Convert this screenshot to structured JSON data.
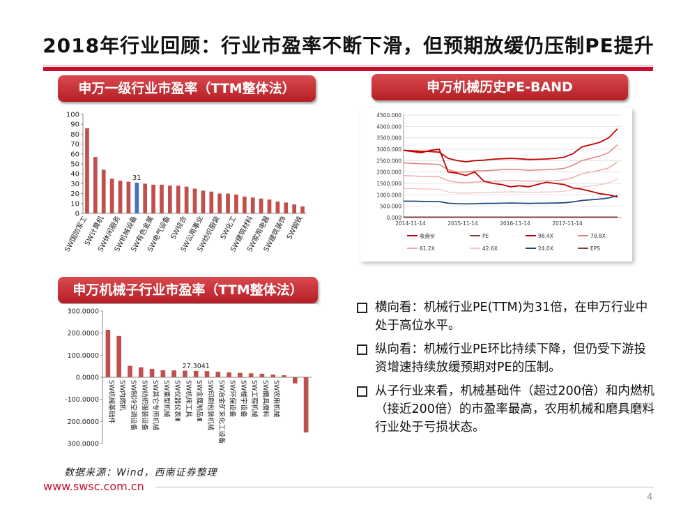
{
  "page": {
    "title": "2018年行业回顾：行业市盈率不断下滑，但预期放缓仍压制PE提升",
    "source": "数据来源：Wind，西南证券整理",
    "url": "www.swsc.com.cn",
    "page_number": "4"
  },
  "headers": {
    "chart1": "申万一级行业市盈率（TTM整体法）",
    "chart2": "申万机械历史PE-BAND",
    "chart3": "申万机械子行业市盈率（TTM整体法）"
  },
  "bullets": [
    "横向看：机械行业PE(TTM)为31倍，在申万行业中处于高位水平。",
    "纵向看：机械行业PE环比持续下降，但仍受下游投资增速持续放缓预期对PE的压制。",
    "从子行业来看，机械基础件（超过200倍）和内燃机（接近200倍）的市盈率最高，农用机械和磨具磨料行业处于亏损状态。"
  ],
  "colors": {
    "red": "#c0504d",
    "blue": "#4472c4",
    "brand": "#c8102e"
  },
  "chart_data": [
    {
      "type": "bar",
      "title": "申万一级行业市盈率（TTM整体法）",
      "ylim": [
        0,
        100
      ],
      "yticks": [
        0,
        10,
        20,
        30,
        40,
        50,
        60,
        70,
        80,
        90,
        100
      ],
      "values": [
        86,
        57,
        44,
        35,
        33,
        32,
        31,
        30,
        29,
        29,
        28,
        28,
        27,
        25,
        23,
        22,
        20,
        20,
        19,
        17,
        16,
        15,
        14,
        12,
        11,
        9,
        7
      ],
      "highlight_index": 6,
      "highlight_label": "31",
      "x_labels": [
        {
          "index": 0,
          "label": "SW国防军工"
        },
        {
          "index": 2,
          "label": "SW计算机"
        },
        {
          "index": 4,
          "label": "SW休闲服务"
        },
        {
          "index": 6,
          "label": "SW机械设备"
        },
        {
          "index": 8,
          "label": "SW有色金属"
        },
        {
          "index": 10,
          "label": "SW电气设备"
        },
        {
          "index": 12,
          "label": "SW综合"
        },
        {
          "index": 14,
          "label": "SW公用事业"
        },
        {
          "index": 16,
          "label": "SW纺织服装"
        },
        {
          "index": 18,
          "label": "SW化工"
        },
        {
          "index": 20,
          "label": "SW建筑材料"
        },
        {
          "index": 22,
          "label": "SW家用电器"
        },
        {
          "index": 24,
          "label": "SW建筑装饰"
        },
        {
          "index": 26,
          "label": "SW钢铁"
        }
      ]
    },
    {
      "type": "line",
      "title": "申万机械历史PE-BAND",
      "ylim": [
        0,
        4500
      ],
      "yticks": [
        "0.000",
        "500.000",
        "1000.000",
        "1500.000",
        "2000.000",
        "2500.000",
        "3000.000",
        "3500.000",
        "4000.000",
        "4500.000"
      ],
      "xticks": [
        "2014-11-14",
        "2015-11-14",
        "2016-11-14",
        "2017-11-14"
      ],
      "legend": [
        "收盘价",
        "PE",
        "98.4X",
        "79.8X",
        "61.2X",
        "42.6X",
        "24.0X",
        "EPS"
      ],
      "series": [
        {
          "name": "收盘价",
          "color": "#c00000",
          "values": [
            2950,
            2900,
            2850,
            2950,
            3000,
            2000,
            1950,
            1850,
            2000,
            1600,
            1500,
            1450,
            1350,
            1400,
            1350,
            1450,
            1550,
            1500,
            1450,
            1300,
            1250,
            1150,
            1050,
            1000,
            900
          ]
        },
        {
          "name": "PE",
          "color": "#7f3f3f",
          "values": [
            20,
            20,
            20,
            20,
            20,
            20,
            20,
            20,
            20,
            20,
            20,
            20,
            20,
            20,
            20,
            20,
            20,
            20,
            20,
            20,
            20,
            20,
            20,
            20,
            20
          ]
        },
        {
          "name": "98.4X",
          "color": "#c00000",
          "values": [
            2950,
            2930,
            2910,
            2900,
            2870,
            2600,
            2500,
            2450,
            2500,
            2520,
            2560,
            2580,
            2600,
            2580,
            2550,
            2560,
            2570,
            2600,
            2650,
            2800,
            3100,
            3200,
            3300,
            3500,
            3900
          ]
        },
        {
          "name": "79.8X",
          "color": "#e08080",
          "values": [
            2400,
            2380,
            2360,
            2350,
            2330,
            2100,
            2000,
            2000,
            2050,
            2050,
            2080,
            2100,
            2120,
            2100,
            2080,
            2090,
            2100,
            2120,
            2160,
            2300,
            2500,
            2600,
            2700,
            2850,
            3200
          ]
        },
        {
          "name": "61.2X",
          "color": "#f0a8a8",
          "values": [
            1840,
            1830,
            1810,
            1800,
            1790,
            1620,
            1550,
            1530,
            1560,
            1570,
            1590,
            1610,
            1620,
            1610,
            1600,
            1600,
            1610,
            1620,
            1660,
            1760,
            1920,
            2000,
            2080,
            2180,
            2450
          ]
        },
        {
          "name": "42.6X",
          "color": "#f5c8c8",
          "values": [
            1280,
            1270,
            1260,
            1250,
            1240,
            1120,
            1080,
            1070,
            1090,
            1090,
            1100,
            1120,
            1130,
            1120,
            1110,
            1110,
            1120,
            1130,
            1160,
            1220,
            1340,
            1390,
            1440,
            1520,
            1700
          ]
        },
        {
          "name": "24.0X",
          "color": "#1f497d",
          "values": [
            720,
            720,
            710,
            700,
            700,
            630,
            610,
            600,
            610,
            620,
            620,
            630,
            640,
            630,
            620,
            630,
            630,
            640,
            650,
            690,
            750,
            780,
            810,
            860,
            960
          ]
        },
        {
          "name": "EPS",
          "color": "#7f3f3f",
          "values": [
            10,
            10,
            10,
            10,
            10,
            10,
            10,
            10,
            10,
            10,
            10,
            10,
            10,
            10,
            10,
            10,
            10,
            10,
            10,
            10,
            10,
            10,
            10,
            10,
            10
          ]
        }
      ]
    },
    {
      "type": "bar",
      "title": "申万机械子行业市盈率（TTM整体法）",
      "ylim": [
        -300,
        300
      ],
      "yticks": [
        "300.0000",
        "200.0000",
        "100.0000",
        "0.0000",
        "-100.0000",
        "200.0000",
        "300.0000"
      ],
      "values": [
        215,
        187,
        52,
        45,
        38,
        32,
        31,
        30,
        29,
        28,
        25,
        22,
        20,
        18,
        16,
        12,
        9,
        -28,
        -250
      ],
      "highlight_label": "27.3041",
      "x_labels": [
        {
          "index": 0,
          "label": "SW机械基础件"
        },
        {
          "index": 1,
          "label": "SW内燃机"
        },
        {
          "index": 2,
          "label": "SW制冷空调设备"
        },
        {
          "index": 3,
          "label": "SW纺织服装设备"
        },
        {
          "index": 4,
          "label": "SW其它专用机械"
        },
        {
          "index": 5,
          "label": "SW重型机械"
        },
        {
          "index": 6,
          "label": "SW仪器仪表Ⅲ"
        },
        {
          "index": 7,
          "label": "SW机床工具"
        },
        {
          "index": 8,
          "label": "SW金属制品Ⅲ"
        },
        {
          "index": 9,
          "label": "SW印刷包装机械"
        },
        {
          "index": 10,
          "label": "SW冶金矿采化工设备"
        },
        {
          "index": 11,
          "label": "SW环保设备"
        },
        {
          "index": 12,
          "label": "SW楼宇设备"
        },
        {
          "index": 13,
          "label": "SW工程机械"
        },
        {
          "index": 14,
          "label": "SW磨具磨料"
        },
        {
          "index": 15,
          "label": "SW农用机械"
        }
      ]
    }
  ]
}
